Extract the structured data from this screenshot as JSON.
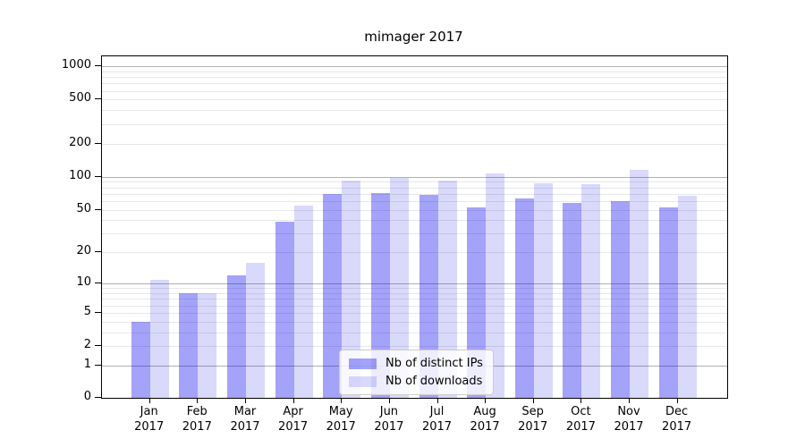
{
  "chart_data": {
    "type": "bar",
    "title": "mimager 2017",
    "categories": [
      "Jan 2017",
      "Feb 2017",
      "Mar 2017",
      "Apr 2017",
      "May 2017",
      "Jun 2017",
      "Jul 2017",
      "Aug 2017",
      "Sep 2017",
      "Oct 2017",
      "Nov 2017",
      "Dec 2017"
    ],
    "series": [
      {
        "name": "Nb of distinct IPs",
        "color": "#0000ee5c",
        "values": [
          4,
          8,
          12,
          39,
          70,
          71,
          68,
          53,
          63,
          58,
          60,
          53
        ]
      },
      {
        "name": "Nb of downloads",
        "color": "#0000ee26",
        "values": [
          11,
          8,
          16,
          55,
          92,
          97,
          93,
          108,
          88,
          85,
          115,
          67
        ]
      }
    ],
    "yscale": "log1p",
    "ylim": [
      0,
      1228
    ],
    "y_ticks": [
      0,
      1,
      2,
      5,
      10,
      20,
      50,
      100,
      200,
      500,
      1000
    ],
    "y_tick_labels": [
      "0",
      "1",
      "2",
      "5",
      "10",
      "20",
      "50",
      "100",
      "200",
      "500",
      "1000"
    ],
    "grid_major": [
      1,
      10,
      100,
      1000
    ],
    "grid_minor": [
      2,
      3,
      4,
      5,
      6,
      7,
      8,
      9,
      20,
      30,
      40,
      50,
      60,
      70,
      80,
      90,
      200,
      300,
      400,
      500,
      600,
      700,
      800,
      900
    ],
    "grid": "on",
    "legend_position": "lower center",
    "colors": {
      "bar_distinct_ips_over_white": "#a3a3f8",
      "bar_downloads_over_white": "#d9d9fc",
      "grid_major": "#b0b0b0",
      "grid_minor": "#e7e7e7",
      "axis": "#000000",
      "text": "#000000"
    }
  }
}
